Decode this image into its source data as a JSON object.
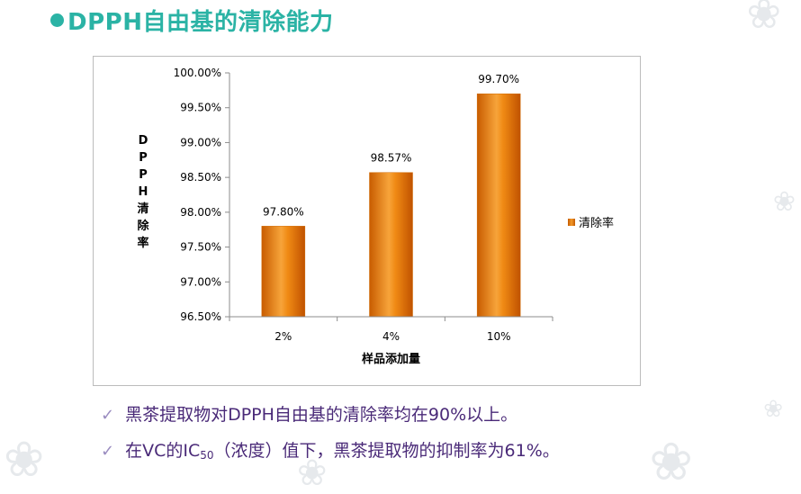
{
  "slide": {
    "title": "DPPH自由基的清除能力"
  },
  "chart_data": {
    "type": "bar",
    "categories": [
      "2%",
      "4%",
      "10%"
    ],
    "series": [
      {
        "name": "清除率",
        "values": [
          97.8,
          98.57,
          99.7
        ]
      }
    ],
    "data_labels": [
      "97.80%",
      "98.57%",
      "99.70%"
    ],
    "y_ticks": [
      "96.50%",
      "97.00%",
      "97.50%",
      "98.00%",
      "98.50%",
      "99.00%",
      "99.50%",
      "100.00%"
    ],
    "ylim": [
      96.5,
      100.0
    ],
    "xlabel": "样品添加量",
    "ylabel": [
      "D",
      "P",
      "P",
      "H",
      "清",
      "除",
      "率"
    ],
    "legend_position": "right",
    "grid": false,
    "bar_color": "#f08a14"
  },
  "bullets": {
    "b1": {
      "text": "黑茶提取物对DPPH自由基的清除率均在90%以上。"
    },
    "b2": {
      "before": "在VC的IC",
      "sub": "50",
      "after": "（浓度）值下，黑茶提取物的抑制率为61%。"
    }
  },
  "icons": {
    "check": "checkmark-icon",
    "bullet": "circle-bullet-icon"
  }
}
